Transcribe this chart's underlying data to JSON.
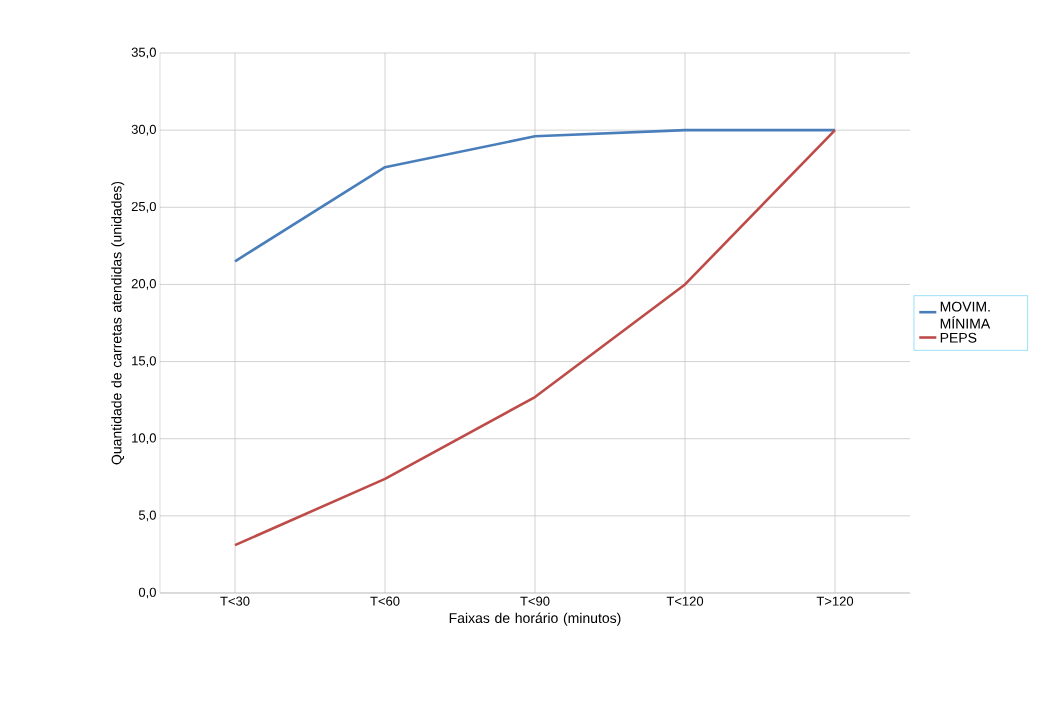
{
  "chart_data": {
    "type": "line",
    "xlabel": "Faixas de horário (minutos)",
    "ylabel": "Quantidade de carretas atendidas (unidades)",
    "categories": [
      "T<30",
      "T<60",
      "T<90",
      "T<120",
      "T>120"
    ],
    "series": [
      {
        "name": "MOVIM. MÍNIMA",
        "color": "#4a7ebb",
        "values": [
          21.5,
          27.6,
          29.6,
          30.0,
          30.0
        ]
      },
      {
        "name": "PEPS",
        "color": "#be4b48",
        "values": [
          3.1,
          7.4,
          12.7,
          20.0,
          30.0
        ]
      }
    ],
    "ylim": [
      0,
      35
    ],
    "yticks": [
      {
        "value": 0,
        "label": "0,0"
      },
      {
        "value": 5,
        "label": "5,0"
      },
      {
        "value": 10,
        "label": "10,0"
      },
      {
        "value": 15,
        "label": "15,0"
      },
      {
        "value": 20,
        "label": "20,0"
      },
      {
        "value": 25,
        "label": "25,0"
      },
      {
        "value": 30,
        "label": "30,0"
      },
      {
        "value": 35,
        "label": "35,0"
      }
    ],
    "grid": true,
    "legend": "right",
    "marker": "none",
    "line_style": "solid"
  }
}
